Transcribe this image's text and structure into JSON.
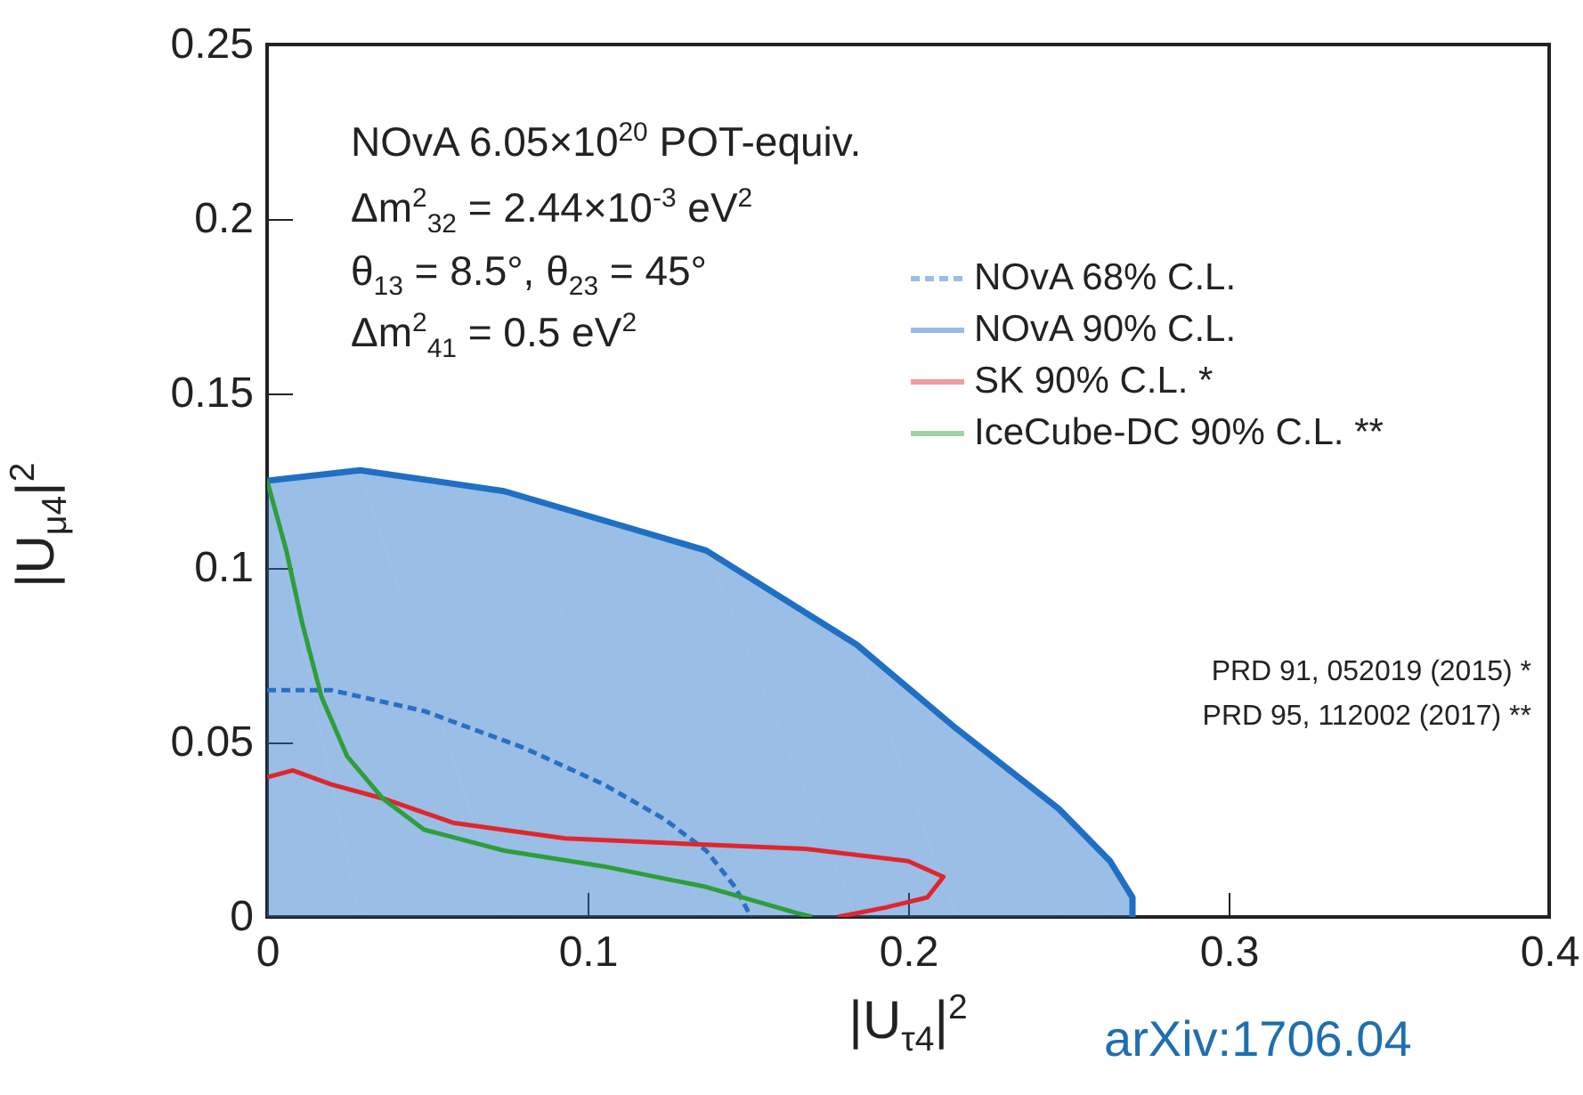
{
  "chart_data": {
    "type": "line",
    "xlabel": "|U$_{τ4}$|$^{2}$",
    "ylabel": "|U$_{μ4}$|$^{2}$",
    "xlim": [
      0,
      0.4
    ],
    "xticks": [
      0,
      0.1,
      0.2,
      0.3,
      0.4
    ],
    "ylim": [
      0,
      0.25
    ],
    "yticks": [
      0,
      0.05,
      0.1,
      0.15,
      0.2,
      0.25
    ],
    "legend": "top right",
    "series": [
      {
        "name": "NOvA 68% C.L.",
        "color": "#2a6fc4",
        "type": "line",
        "line_style": "dashed",
        "x": [
          0,
          0.005,
          0.02,
          0.049,
          0.08,
          0.105,
          0.124,
          0.137,
          0.146,
          0.151
        ],
        "values": [
          0.065,
          0.065,
          0.065,
          0.059,
          0.0485,
          0.038,
          0.028,
          0.019,
          0.0086,
          0
        ]
      },
      {
        "name": "NOvA 90% C.L.",
        "color": "#1f6fc5",
        "type": "area",
        "x": [
          0,
          0.029,
          0.074,
          0.137,
          0.184,
          0.215,
          0.247,
          0.263,
          0.27,
          0.27
        ],
        "values": [
          0.125,
          0.128,
          0.122,
          0.105,
          0.078,
          0.054,
          0.031,
          0.016,
          0.0056,
          0
        ]
      },
      {
        "name": "SK 90% C.L. *",
        "color": "#e0262c",
        "type": "line",
        "x": [
          0,
          0.008,
          0.02,
          0.036,
          0.058,
          0.093,
          0.13,
          0.168,
          0.2,
          0.211,
          0.206,
          0.193,
          0.178
        ],
        "values": [
          0.04,
          0.042,
          0.038,
          0.034,
          0.027,
          0.0225,
          0.021,
          0.0195,
          0.016,
          0.0115,
          0.0056,
          0.0027,
          0
        ]
      },
      {
        "name": "IceCube-DC 90% C.L. **",
        "color": "#2e9e3a",
        "type": "line",
        "x": [
          0,
          0.006,
          0.011,
          0.017,
          0.025,
          0.036,
          0.049,
          0.074,
          0.105,
          0.137,
          0.165,
          0.17
        ],
        "values": [
          0.125,
          0.105,
          0.084,
          0.063,
          0.046,
          0.034,
          0.025,
          0.019,
          0.0145,
          0.0086,
          0.0012,
          0
        ]
      }
    ],
    "annotations": [
      "NOvA 6.05×10$^{20}$ POT-equiv.",
      "Δm$^{2}$$_{32}$ = 2.44×10$^{-3}$ eV$^{2}$",
      "θ$_{13}$ = 8.5°, θ$_{23}$ = 45°",
      "Δm$^{2}$$_{41}$ = 0.5 eV$^{2}$",
      "PRD 91, 052019 (2015) *",
      "PRD 95, 112002 (2017) **",
      "arXiv:1706.04"
    ]
  }
}
